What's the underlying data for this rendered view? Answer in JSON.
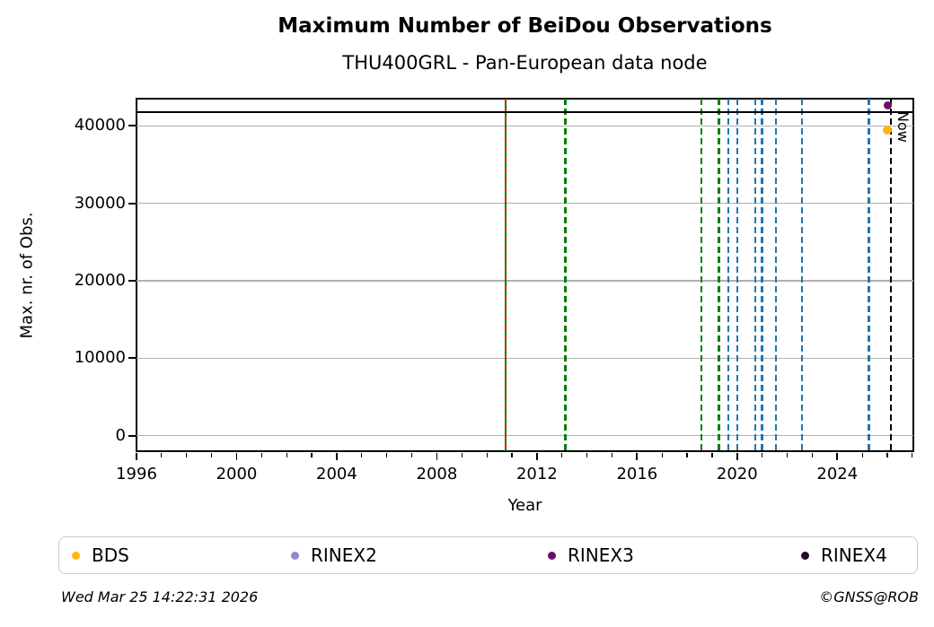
{
  "header": {
    "title": "Maximum Number of BeiDou Observations",
    "subtitle": "THU400GRL - Pan-European data node"
  },
  "footer": {
    "timestamp": "Wed Mar 25 14:22:31 2026",
    "credit": "©GNSS@ROB"
  },
  "chart_data": {
    "type": "scatter",
    "title": "Maximum Number of BeiDou Observations",
    "subtitle": "THU400GRL - Pan-European data node",
    "xlabel": "Year",
    "ylabel": "Max. nr. of Obs.",
    "xlim": [
      1996,
      2027.04
    ],
    "ylim": [
      -2000,
      43500
    ],
    "x_ticks_major": [
      1996,
      2000,
      2004,
      2008,
      2012,
      2016,
      2020,
      2024
    ],
    "x_minor_tick_step": 1,
    "y_ticks": [
      0,
      10000,
      20000,
      30000,
      40000
    ],
    "grid": "horizontal",
    "grid_color": "#b0b0b0",
    "legend_position": "bottom",
    "points": [
      {
        "series": "RINEX3",
        "x": 2026.0,
        "y": 42600,
        "color": "#6e0d6a",
        "size": 9
      },
      {
        "series": "BDS",
        "x": 2026.0,
        "y": 39500,
        "color": "#fdb515",
        "size": 10
      }
    ],
    "hline": {
      "y": 41800,
      "color": "#000000"
    },
    "event_lines": [
      {
        "x": 2010.75,
        "color": "#008000",
        "style": "solid",
        "dash": null
      },
      {
        "x": 2010.75,
        "color": "#ff0000",
        "style": "dashed",
        "dash": [
          4,
          7
        ]
      },
      {
        "x": 2013.14,
        "color": "#008000",
        "style": "dashed",
        "dash": [
          7,
          4
        ]
      },
      {
        "x": 2018.58,
        "color": "#008000",
        "style": "dashed",
        "dash": [
          7,
          4
        ]
      },
      {
        "x": 2019.27,
        "color": "#008000",
        "style": "dashed",
        "dash": [
          7,
          4
        ]
      },
      {
        "x": 2019.65,
        "color": "#1f77b4",
        "style": "dashed",
        "dash": [
          7,
          4
        ]
      },
      {
        "x": 2020.01,
        "color": "#1f77b4",
        "style": "dashed",
        "dash": [
          7,
          4
        ]
      },
      {
        "x": 2020.73,
        "color": "#1f77b4",
        "style": "dashed",
        "dash": [
          7,
          4
        ]
      },
      {
        "x": 2020.99,
        "color": "#1f77b4",
        "style": "dashed",
        "dash": [
          7,
          4
        ]
      },
      {
        "x": 2021.54,
        "color": "#1f77b4",
        "style": "dashed",
        "dash": [
          7,
          4
        ]
      },
      {
        "x": 2022.6,
        "color": "#1f77b4",
        "style": "dashed",
        "dash": [
          7,
          4
        ]
      },
      {
        "x": 2025.27,
        "color": "#1f77b4",
        "style": "dashed",
        "dash": [
          7,
          4
        ]
      }
    ],
    "now_line": {
      "x": 2026.14,
      "label": "Now",
      "color": "#000000",
      "style": "dashed"
    },
    "legend": [
      {
        "label": "BDS",
        "color": "#fdb515"
      },
      {
        "label": "RINEX2",
        "color": "#8b8bd0"
      },
      {
        "label": "RINEX3",
        "color": "#6e0d6a"
      },
      {
        "label": "RINEX4",
        "color": "#26082a"
      }
    ]
  }
}
